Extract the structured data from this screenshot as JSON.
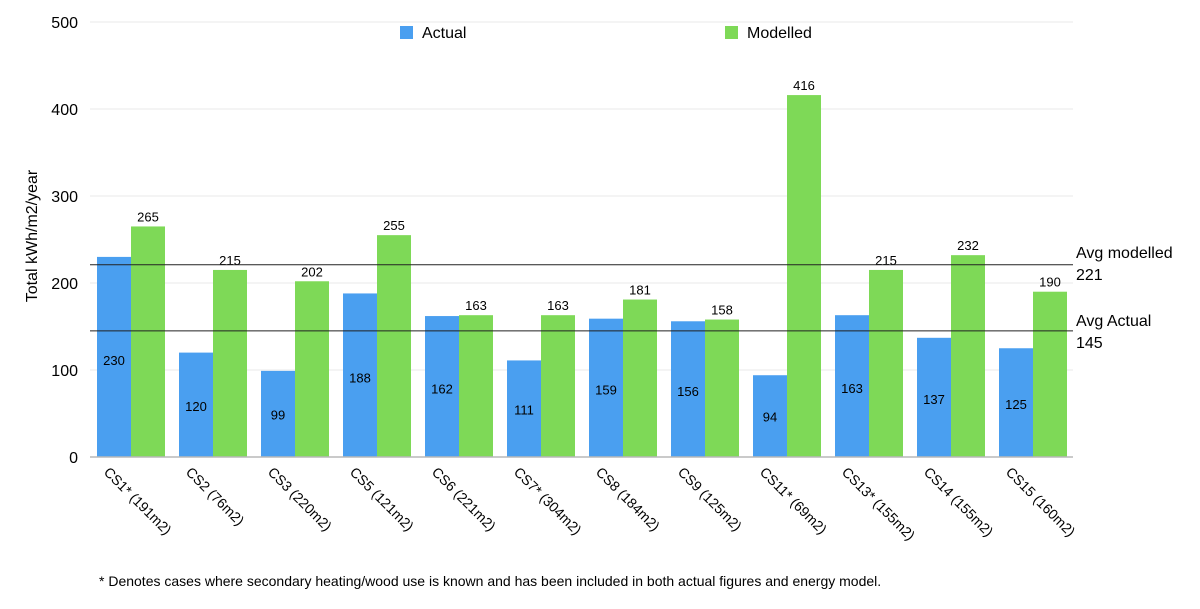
{
  "chart_data": {
    "type": "bar",
    "title": "",
    "xlabel": "",
    "ylabel": "Total kWh/m2/year",
    "ylim": [
      0,
      500
    ],
    "yticks": [
      0,
      100,
      200,
      300,
      400,
      500
    ],
    "grid": true,
    "legend_position": "top-center",
    "categories": [
      "CS1* (191m2)",
      "CS2 (76m2)",
      "CS3 (220m2)",
      "CS5 (121m2)",
      "CS6 (221m2)",
      "CS7* (304m2)",
      "CS8 (184m2)",
      "CS9 (125m2)",
      "CS11* (69m2)",
      "CS13* (155m2)",
      "CS14 (155m2)",
      "CS15 (160m2)"
    ],
    "series": [
      {
        "name": "Actual",
        "color": "#4a9ff0",
        "values": [
          230,
          120,
          99,
          188,
          162,
          111,
          159,
          156,
          94,
          163,
          137,
          125
        ]
      },
      {
        "name": "Modelled",
        "color": "#7ed957",
        "values": [
          265,
          215,
          202,
          255,
          163,
          163,
          181,
          158,
          416,
          215,
          232,
          190
        ]
      }
    ],
    "reference_lines": [
      {
        "label": "Avg modelled",
        "value_label": "221",
        "value": 221
      },
      {
        "label": "Avg Actual",
        "value_label": "145",
        "value": 145
      }
    ],
    "footnote": "* Denotes cases where secondary heating/wood use is known and has been included in both actual figures and energy model."
  }
}
